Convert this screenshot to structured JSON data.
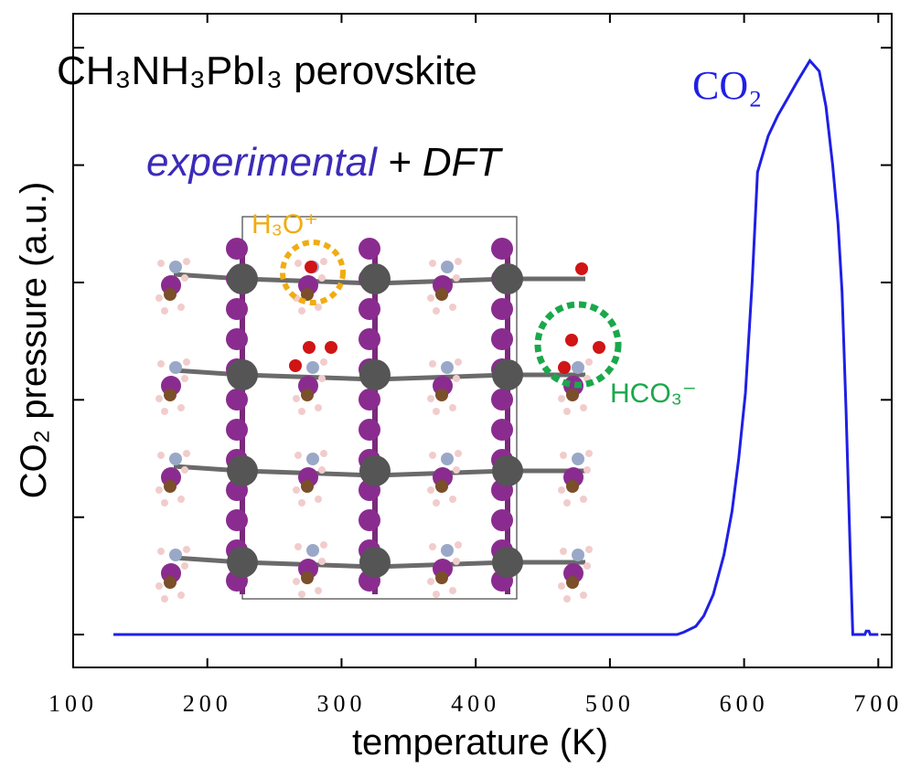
{
  "chart_data": {
    "type": "line",
    "title": "CH₃NH₃PbI₃ perovskite",
    "subtitle_parts": [
      "experimental",
      "+ DFT"
    ],
    "x_label": "temperature (K)",
    "y_label": "CO₂ pressure (a.u.)",
    "annotations": [
      "H₃O⁺",
      "HCO₃⁻"
    ],
    "x": [
      130,
      550,
      555,
      564,
      570,
      577,
      585,
      591,
      596,
      601,
      606,
      610,
      618,
      625,
      632,
      640,
      649,
      656,
      661,
      666,
      670,
      673,
      676,
      679,
      681,
      690,
      691,
      693,
      694,
      700
    ],
    "series": [
      {
        "name": "CO₂",
        "color": "#1f1fe6",
        "values": [
          0,
          0,
          0.02,
          0.07,
          0.16,
          0.34,
          0.68,
          1.05,
          1.5,
          2.06,
          3.0,
          3.94,
          4.25,
          4.42,
          4.56,
          4.72,
          4.89,
          4.8,
          4.5,
          4.0,
          3.5,
          2.92,
          1.9,
          0.73,
          0,
          0,
          0.03,
          0.03,
          0,
          0
        ]
      }
    ],
    "xlim": [
      100,
      710
    ],
    "xticks": [
      100,
      200,
      300,
      400,
      500,
      600,
      700
    ],
    "ylim": [
      -0.28,
      5.29
    ],
    "yticks": [
      0,
      1,
      2,
      3,
      4,
      5
    ]
  }
}
